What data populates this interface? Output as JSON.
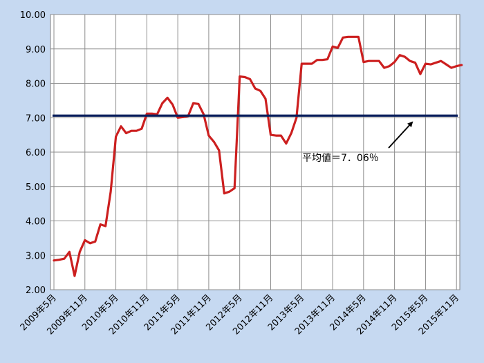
{
  "chart_data": {
    "type": "line",
    "title": "",
    "xlabel": "",
    "ylabel": "",
    "ylim": [
      2.0,
      10.0
    ],
    "yticks": [
      "2.00",
      "3.00",
      "4.00",
      "5.00",
      "6.00",
      "7.00",
      "8.00",
      "9.00",
      "10.00"
    ],
    "x_tick_labels": [
      "2009年5月",
      "2009年11月",
      "2010年5月",
      "2010年11月",
      "2011年5月",
      "2011年11月",
      "2012年5月",
      "2012年11月",
      "2013年5月",
      "2013年11月",
      "2014年5月",
      "2014年11月",
      "2015年5月",
      "2015年11月"
    ],
    "x_start": "2009年5月",
    "grid": true,
    "series": [
      {
        "color": "#cc1f1f",
        "values": [
          2.85,
          2.87,
          2.9,
          3.1,
          2.4,
          3.1,
          3.44,
          3.35,
          3.4,
          3.9,
          3.85,
          4.85,
          6.45,
          6.75,
          6.55,
          6.62,
          6.62,
          6.68,
          7.12,
          7.12,
          7.1,
          7.42,
          7.58,
          7.38,
          7.0,
          7.02,
          7.05,
          7.42,
          7.4,
          7.1,
          6.48,
          6.3,
          6.05,
          4.8,
          4.85,
          4.95,
          8.2,
          8.18,
          8.12,
          7.85,
          7.78,
          7.55,
          6.5,
          6.48,
          6.48,
          6.25,
          6.55,
          7.0,
          8.57,
          8.57,
          8.57,
          8.68,
          8.68,
          8.7,
          9.07,
          9.03,
          9.33,
          9.35,
          9.35,
          9.35,
          8.62,
          8.65,
          8.65,
          8.65,
          8.45,
          8.5,
          8.62,
          8.82,
          8.77,
          8.65,
          8.6,
          8.27,
          8.57,
          8.55,
          8.6,
          8.65,
          8.55,
          8.45,
          8.5,
          8.53
        ]
      }
    ],
    "average": {
      "value": 7.06,
      "color": "#0a1f5c",
      "label": "平均値＝7．06％"
    },
    "background": "#c6d9f1",
    "plot_background": "#ffffff"
  }
}
